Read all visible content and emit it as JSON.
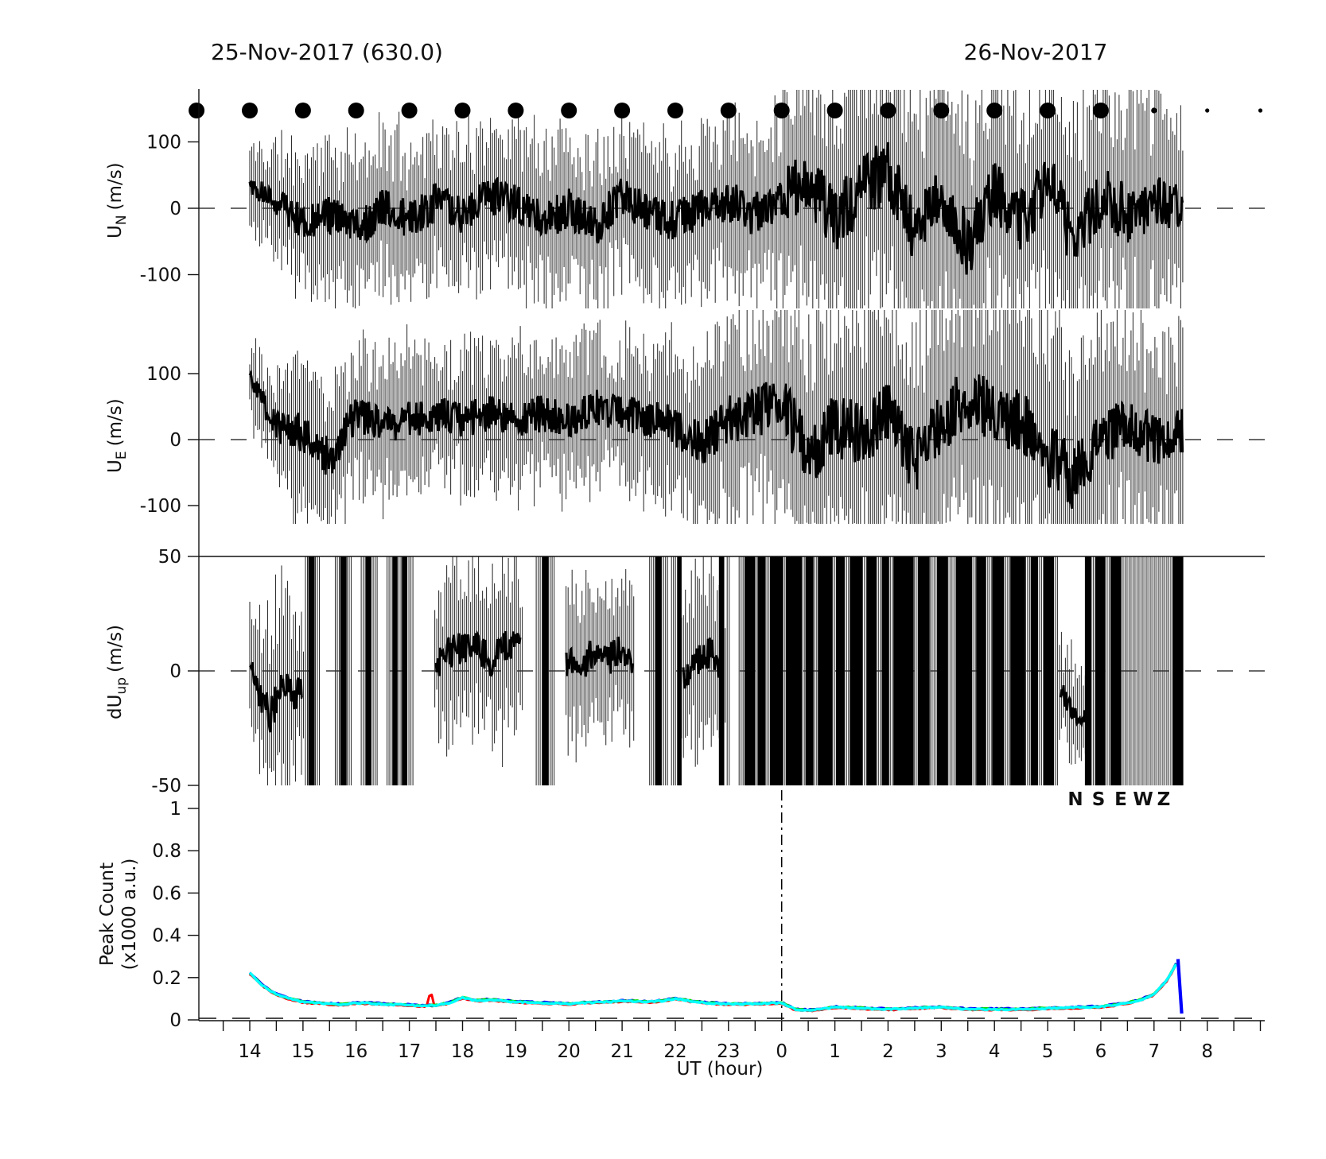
{
  "title_left": "25-Nov-2017 (630.0)",
  "title_right": "26-Nov-2017",
  "xlabel": "UT (hour)",
  "x_axis": {
    "tick_labels": [
      "14",
      "15",
      "16",
      "17",
      "18",
      "19",
      "20",
      "21",
      "22",
      "23",
      "0",
      "1",
      "2",
      "3",
      "4",
      "5",
      "6",
      "7",
      "8"
    ],
    "minor_tick_step_hours": 0.5
  },
  "ylabels": {
    "un": {
      "pre": "U",
      "sub": "N",
      "unit": "(m/s)"
    },
    "ue": {
      "pre": "U",
      "sub": "E",
      "unit": "(m/s)"
    },
    "dup": {
      "pre": "dU",
      "sub": "up",
      "unit": "(m/s)"
    },
    "count_line1": "Peak Count",
    "count_line2": "(x1000 a.u.)"
  },
  "legend": [
    {
      "label": "N",
      "color": "#000000"
    },
    {
      "label": "S",
      "color": "#ff0000"
    },
    {
      "label": "E",
      "color": "#0000ff"
    },
    {
      "label": "W",
      "color": "#00dd00"
    },
    {
      "label": "Z",
      "color": "#00ffff"
    }
  ],
  "top_markers": {
    "shape": "filled-circle",
    "entries": [
      {
        "hour": "13",
        "size": "large"
      },
      {
        "hour": "14",
        "size": "large"
      },
      {
        "hour": "15",
        "size": "large"
      },
      {
        "hour": "16",
        "size": "large"
      },
      {
        "hour": "17",
        "size": "large"
      },
      {
        "hour": "18",
        "size": "large"
      },
      {
        "hour": "19",
        "size": "large"
      },
      {
        "hour": "20",
        "size": "large"
      },
      {
        "hour": "21",
        "size": "large"
      },
      {
        "hour": "22",
        "size": "large"
      },
      {
        "hour": "23",
        "size": "large"
      },
      {
        "hour": "0",
        "size": "large"
      },
      {
        "hour": "1",
        "size": "large"
      },
      {
        "hour": "2",
        "size": "large"
      },
      {
        "hour": "3",
        "size": "large"
      },
      {
        "hour": "4",
        "size": "large"
      },
      {
        "hour": "5",
        "size": "large"
      },
      {
        "hour": "6",
        "size": "large"
      },
      {
        "hour": "7",
        "size": "small"
      },
      {
        "hour": "8",
        "size": "tiny"
      },
      {
        "hour": "9",
        "size": "tiny"
      }
    ]
  },
  "chart_data": [
    {
      "type": "line",
      "title": "U_N wind with error bars",
      "ylabel": "U_N (m/s)",
      "yticks": [
        100,
        0,
        -100
      ],
      "ylim": [
        -165,
        178
      ],
      "x_unit": "hours since 14:00 UT",
      "x": [
        0,
        0.5,
        1,
        1.5,
        2,
        2.5,
        3,
        3.5,
        4,
        4.5,
        5,
        5.5,
        6,
        6.5,
        7,
        7.5,
        8,
        8.5,
        9,
        9.5,
        10,
        10.5,
        11,
        11.5,
        12,
        12.5,
        13,
        13.5,
        14,
        14.5,
        15,
        15.5,
        16,
        16.5,
        17,
        17.5
      ],
      "series": [
        {
          "name": "mean",
          "values": [
            30,
            10,
            -20,
            -10,
            -30,
            0,
            -20,
            10,
            -10,
            20,
            10,
            -20,
            0,
            -30,
            20,
            -10,
            -20,
            0,
            10,
            -10,
            20,
            40,
            -20,
            30,
            60,
            -40,
            20,
            -60,
            30,
            -20,
            40,
            -50,
            20,
            -10,
            10,
            0
          ]
        },
        {
          "name": "error_halfwidth",
          "values": [
            55,
            70,
            90,
            90,
            95,
            100,
            100,
            95,
            90,
            95,
            100,
            100,
            95,
            100,
            100,
            95,
            100,
            100,
            100,
            110,
            130,
            150,
            160,
            160,
            160,
            160,
            160,
            160,
            160,
            160,
            160,
            160,
            150,
            140,
            130,
            120
          ]
        }
      ]
    },
    {
      "type": "line",
      "title": "U_E wind with error bars",
      "ylabel": "U_E (m/s)",
      "yticks": [
        100,
        0,
        -100
      ],
      "ylim": [
        -130,
        198
      ],
      "x_unit": "hours since 14:00 UT",
      "x": [
        0,
        0.5,
        1,
        1.5,
        2,
        2.5,
        3,
        3.5,
        4,
        4.5,
        5,
        5.5,
        6,
        6.5,
        7,
        7.5,
        8,
        8.5,
        9,
        9.5,
        10,
        10.5,
        11,
        11.5,
        12,
        12.5,
        13,
        13.5,
        14,
        14.5,
        15,
        15.5,
        16,
        16.5,
        17,
        17.5
      ],
      "series": [
        {
          "name": "mean",
          "values": [
            90,
            20,
            10,
            -30,
            40,
            20,
            30,
            40,
            30,
            40,
            30,
            40,
            30,
            50,
            40,
            30,
            20,
            -10,
            30,
            40,
            60,
            -30,
            20,
            10,
            40,
            -40,
            30,
            60,
            40,
            30,
            -20,
            -60,
            10,
            20,
            0,
            10
          ]
        },
        {
          "name": "error_halfwidth",
          "values": [
            45,
            80,
            100,
            100,
            95,
            90,
            90,
            85,
            85,
            90,
            90,
            90,
            90,
            90,
            90,
            95,
            100,
            110,
            120,
            130,
            150,
            160,
            160,
            160,
            160,
            160,
            160,
            160,
            160,
            160,
            160,
            160,
            150,
            140,
            130,
            120
          ]
        }
      ]
    },
    {
      "type": "line",
      "title": "dU_up with error bars; saturated intervals shown as solid black columns",
      "ylabel": "dU_up (m/s)",
      "yticks": [
        50,
        0,
        -50
      ],
      "ylim": [
        -50,
        50
      ],
      "x_unit": "hours since 14:00 UT",
      "segments": [
        {
          "x": [
            0,
            0.2,
            0.4,
            0.6,
            0.8,
            1.0
          ],
          "mean": [
            5,
            -12,
            -18,
            -5,
            -10,
            -8
          ],
          "error_halfwidth": [
            18,
            30,
            38,
            35,
            30,
            25
          ]
        },
        {
          "x": [
            3.5,
            3.75,
            4.0,
            4.25,
            4.5,
            4.75,
            5.0,
            5.1
          ],
          "mean": [
            2,
            8,
            10,
            12,
            5,
            8,
            15,
            10
          ],
          "error_halfwidth": [
            25,
            30,
            30,
            28,
            30,
            32,
            30,
            28
          ]
        },
        {
          "x": [
            5.95,
            6.2,
            6.45,
            6.7,
            6.95,
            7.2
          ],
          "mean": [
            5,
            0,
            8,
            3,
            10,
            5
          ],
          "error_halfwidth": [
            28,
            30,
            28,
            30,
            28,
            26
          ]
        },
        {
          "x": [
            8.15,
            8.4,
            8.65,
            8.9
          ],
          "mean": [
            -3,
            5,
            8,
            2
          ],
          "error_halfwidth": [
            30,
            32,
            30,
            28
          ]
        },
        {
          "x": [
            15.25,
            15.4,
            15.55,
            15.7
          ],
          "mean": [
            -8,
            -15,
            -22,
            -18
          ],
          "error_halfwidth": [
            15,
            18,
            20,
            18
          ]
        }
      ],
      "saturated_intervals": [
        [
          1.1,
          1.22
        ],
        [
          1.7,
          1.82
        ],
        [
          2.18,
          2.28
        ],
        [
          2.68,
          2.78
        ],
        [
          2.86,
          2.96
        ],
        [
          5.5,
          5.62
        ],
        [
          7.62,
          7.74
        ],
        [
          8.04,
          8.12
        ],
        [
          8.82,
          8.92
        ],
        [
          9.3,
          9.5
        ],
        [
          9.55,
          9.7
        ],
        [
          9.78,
          10.02
        ],
        [
          10.08,
          10.38
        ],
        [
          10.45,
          10.6
        ],
        [
          10.68,
          10.95
        ],
        [
          11.02,
          11.18
        ],
        [
          11.28,
          11.52
        ],
        [
          11.6,
          11.78
        ],
        [
          11.88,
          12.02
        ],
        [
          12.1,
          12.48
        ],
        [
          12.56,
          12.78
        ],
        [
          12.92,
          13.12
        ],
        [
          13.28,
          13.58
        ],
        [
          13.66,
          13.84
        ],
        [
          13.96,
          14.18
        ],
        [
          14.3,
          14.58
        ],
        [
          14.68,
          14.82
        ],
        [
          14.92,
          15.12
        ],
        [
          15.7,
          15.82
        ],
        [
          15.9,
          16.08
        ],
        [
          16.18,
          16.38
        ],
        [
          17.35,
          17.55
        ]
      ]
    },
    {
      "type": "line",
      "title": "Peak Count",
      "ylabel": "Peak Count (x1000 a.u.)",
      "yticks": [
        1,
        0.8,
        0.6,
        0.4,
        0.2,
        0
      ],
      "ylim": [
        0,
        1.05
      ],
      "x_unit": "hours since 14:00 UT",
      "x_step_hours": 0.25,
      "series_names": [
        "N",
        "S",
        "E",
        "W",
        "Z"
      ],
      "base_values": [
        0.22,
        0.16,
        0.12,
        0.1,
        0.085,
        0.08,
        0.075,
        0.073,
        0.08,
        0.078,
        0.075,
        0.072,
        0.07,
        0.066,
        0.068,
        0.08,
        0.105,
        0.09,
        0.095,
        0.09,
        0.085,
        0.082,
        0.08,
        0.078,
        0.075,
        0.08,
        0.082,
        0.085,
        0.09,
        0.088,
        0.085,
        0.09,
        0.1,
        0.09,
        0.082,
        0.078,
        0.075,
        0.075,
        0.076,
        0.078,
        0.08,
        0.05,
        0.045,
        0.05,
        0.06,
        0.058,
        0.055,
        0.052,
        0.05,
        0.052,
        0.055,
        0.058,
        0.06,
        0.055,
        0.05,
        0.05,
        0.05,
        0.05,
        0.05,
        0.052,
        0.055,
        0.055,
        0.058,
        0.06,
        0.062,
        0.07,
        0.08,
        0.095,
        0.12,
        0.19,
        0.3
      ],
      "anomalies": {
        "S_spike": {
          "t": 3.4,
          "value": 0.13
        },
        "Z_end_peak": {
          "t": 17.45,
          "value": 0.31
        },
        "E_end_drop": {
          "t": 17.52,
          "value": 0.03
        }
      },
      "vline_dashdot_at_hour": "0"
    }
  ]
}
